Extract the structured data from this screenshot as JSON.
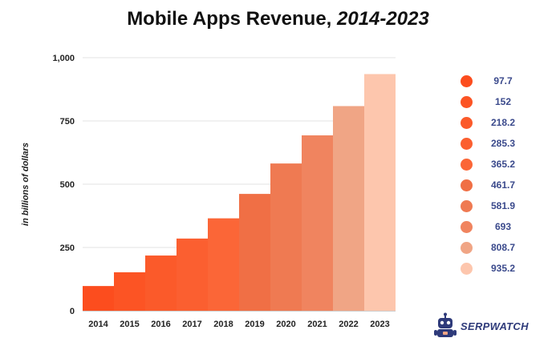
{
  "title": {
    "main": "Mobile Apps Revenue, ",
    "range": "2014-2023"
  },
  "chart_data": {
    "type": "bar",
    "title": "Mobile Apps Revenue, 2014-2023",
    "xlabel": "",
    "ylabel": "in billions of dollars",
    "categories": [
      "2014",
      "2015",
      "2016",
      "2017",
      "2018",
      "2019",
      "2020",
      "2021",
      "2022",
      "2023"
    ],
    "values": [
      97.7,
      152,
      218.2,
      285.3,
      365.2,
      461.7,
      581.9,
      693,
      808.7,
      935.2
    ],
    "value_labels": [
      "97.7",
      "152",
      "218.2",
      "285.3",
      "365.2",
      "461.7",
      "581.9",
      "693",
      "808.7",
      "935.2"
    ],
    "colors": [
      "#fc4d1e",
      "#fc5424",
      "#fb5a2a",
      "#fb5f30",
      "#fb6637",
      "#f06f45",
      "#ef7a52",
      "#f0845f",
      "#f0a585",
      "#fdc6ad"
    ],
    "ylim": [
      0,
      1000
    ],
    "yticks": [
      0,
      250,
      500,
      750,
      1000
    ],
    "ytick_labels": [
      "0",
      "250",
      "500",
      "750",
      "1,000"
    ],
    "grid": true,
    "legend_position": "right"
  },
  "brand": {
    "name": "SERPWATCH",
    "icon": "robot-mascot-icon",
    "text_color": "#2e3a7a"
  },
  "colors": {
    "grid": "#e3e3e3",
    "legend_text": "#3b4a8c"
  }
}
